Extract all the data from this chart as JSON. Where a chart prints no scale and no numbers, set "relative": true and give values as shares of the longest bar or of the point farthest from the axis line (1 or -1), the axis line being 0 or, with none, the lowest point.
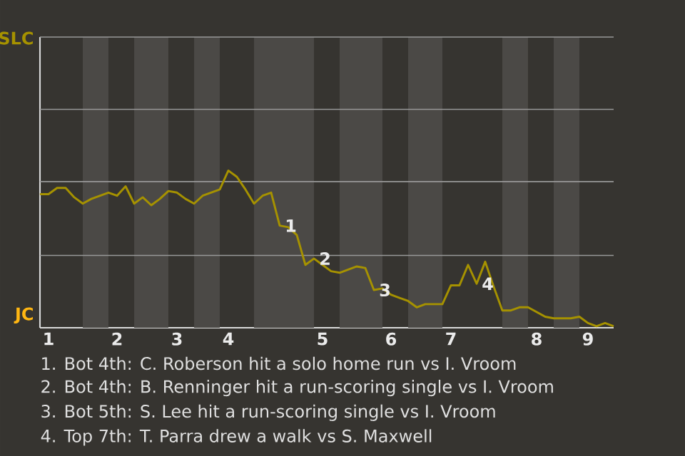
{
  "chart_data": {
    "type": "line",
    "relative": true,
    "categories": [
      null,
      "1",
      null,
      null,
      null,
      null,
      null,
      null,
      null,
      "2",
      null,
      null,
      null,
      null,
      null,
      null,
      "3",
      null,
      null,
      null,
      null,
      null,
      "4",
      null,
      null,
      null,
      null,
      null,
      null,
      null,
      null,
      null,
      null,
      "5",
      null,
      null,
      null,
      null,
      null,
      null,
      null,
      "6",
      null,
      null,
      null,
      null,
      null,
      null,
      "7",
      null,
      null,
      null,
      null,
      null,
      null,
      null,
      null,
      null,
      "8",
      null,
      null,
      null,
      null,
      null,
      "9",
      null,
      null,
      null
    ],
    "series": [
      {
        "color": "#a69200",
        "line_style": "solid",
        "values": [
          0.85,
          0.85,
          0.89,
          0.89,
          0.83,
          0.79,
          0.82,
          0.84,
          0.86,
          0.84,
          0.9,
          0.79,
          0.83,
          0.78,
          0.82,
          0.87,
          0.86,
          0.82,
          0.79,
          0.84,
          0.86,
          0.88,
          1,
          0.96,
          0.88,
          0.79,
          0.84,
          0.86,
          0.65,
          0.64,
          0.59,
          0.4,
          0.44,
          0.4,
          0.36,
          0.35,
          0.37,
          0.39,
          0.38,
          0.24,
          0.25,
          0.21,
          0.19,
          0.17,
          0.13,
          0.15,
          0.15,
          0.15,
          0.27,
          0.27,
          0.4,
          0.28,
          0.42,
          0.26,
          0.11,
          0.11,
          0.13,
          0.13,
          0.1,
          0.07,
          0.06,
          0.06,
          0.06,
          0.07,
          0.03,
          0.01,
          0.03,
          0.01
        ]
      }
    ],
    "ref_lines": [
      {
        "axis": "y",
        "value": 0.46
      },
      {
        "axis": "y",
        "value": 0.93
      },
      {
        "axis": "y",
        "value": 1.39
      }
    ],
    "annotations": [
      "SLC",
      "JC",
      {
        "text": "1",
        "y": 0.65
      },
      {
        "text": "2",
        "y": 0.44
      },
      {
        "text": "3",
        "y": 0.24
      },
      {
        "text": "4",
        "y": 0.28
      },
      "1. Bot 4th: C. Roberson hit a solo home run vs I. Vroom",
      "2. Bot 4th: B. Renninger hit a run-scoring single vs I. Vroom",
      "3. Bot 5th: S. Lee hit a run-scoring single vs I. Vroom",
      "4. Top 7th: T. Parra drew a walk vs S. Maxwell"
    ]
  }
}
